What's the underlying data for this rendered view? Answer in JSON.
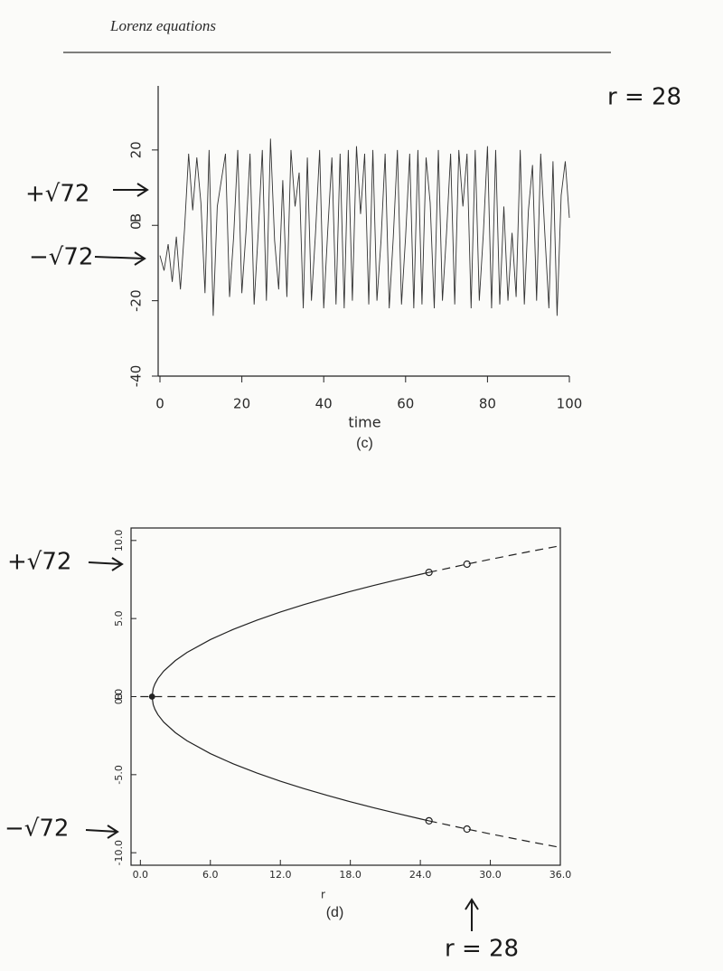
{
  "header": {
    "title": "Lorenz equations"
  },
  "chart_data": [
    {
      "type": "line",
      "caption": "(c)",
      "x_label": "time",
      "y_label": "B",
      "xlim": [
        0,
        100
      ],
      "ylim": [
        -40,
        37
      ],
      "xticks": [
        0,
        20,
        40,
        60,
        80,
        100
      ],
      "yticks": [
        -40,
        -20,
        0,
        20
      ],
      "annotations": [
        "r = 28",
        "+√72",
        "−√72"
      ],
      "series": [
        {
          "color": "#333333",
          "style": "solid",
          "x": [
            0,
            1,
            2,
            3,
            4,
            5,
            6,
            7,
            8,
            9,
            10,
            11,
            12,
            13,
            14,
            15,
            16,
            17,
            18,
            19,
            20,
            21,
            22,
            23,
            24,
            25,
            26,
            27,
            28,
            29,
            30,
            31,
            32,
            33,
            34,
            35,
            36,
            37,
            38,
            39,
            40,
            41,
            42,
            43,
            44,
            45,
            46,
            47,
            48,
            49,
            50,
            51,
            52,
            53,
            54,
            55,
            56,
            57,
            58,
            59,
            60,
            61,
            62,
            63,
            64,
            65,
            66,
            67,
            68,
            69,
            70,
            71,
            72,
            73,
            74,
            75,
            76,
            77,
            78,
            79,
            80,
            81,
            82,
            83,
            84,
            85,
            86,
            87,
            88,
            89,
            90,
            91,
            92,
            93,
            94,
            95,
            96,
            97,
            98,
            99,
            100
          ],
          "values": [
            -8,
            -12,
            -5,
            -15,
            -3,
            -17,
            -1,
            19,
            4,
            18,
            6,
            -18,
            20,
            -24,
            5,
            12,
            19,
            -19,
            -3,
            20,
            -18,
            -2,
            19,
            -21,
            -2,
            20,
            -20,
            23,
            -4,
            -17,
            12,
            -19,
            20,
            5,
            14,
            -22,
            18,
            -20,
            -2,
            20,
            -22,
            -1,
            18,
            -21,
            19,
            -22,
            20,
            -20,
            21,
            3,
            19,
            -21,
            20,
            -20,
            -4,
            19,
            -22,
            -3,
            20,
            -21,
            -3,
            19,
            -22,
            20,
            -21,
            18,
            6,
            -22,
            20,
            -20,
            -2,
            19,
            -21,
            20,
            5,
            19,
            -22,
            20,
            -20,
            -2,
            21,
            -22,
            20,
            -21,
            5,
            -20,
            -2,
            -19,
            20,
            -21,
            4,
            16,
            -20,
            19,
            -2,
            -22,
            17,
            -24,
            8,
            17,
            2
          ]
        }
      ]
    },
    {
      "type": "line",
      "caption": "(d)",
      "x_label": "r",
      "y_label": "B",
      "xlim": [
        -0.8,
        36
      ],
      "ylim": [
        -10.8,
        10.8
      ],
      "xticks": [
        {
          "value": 0,
          "label": "0.0"
        },
        {
          "value": 6,
          "label": "6.0"
        },
        {
          "value": 12,
          "label": "12.0"
        },
        {
          "value": 18,
          "label": "18.0"
        },
        {
          "value": 24,
          "label": "24.0"
        },
        {
          "value": 30,
          "label": "30.0"
        },
        {
          "value": 36,
          "label": "36.0"
        }
      ],
      "yticks": [
        {
          "value": -10,
          "label": "-10.0"
        },
        {
          "value": -5,
          "label": "-5.0"
        },
        {
          "value": 0,
          "label": "0.0"
        },
        {
          "value": 5,
          "label": "5.0"
        },
        {
          "value": 10,
          "label": "10.0"
        }
      ],
      "annotations": [
        "+√72",
        "−√72",
        "r = 28"
      ],
      "series": [
        {
          "color": "#222222",
          "style": "solid",
          "x": [
            1,
            1.1,
            1.25,
            1.5,
            2,
            3,
            4,
            6,
            8,
            10,
            12,
            14,
            16,
            18,
            20,
            22,
            24,
            24.74
          ],
          "values": [
            0,
            0.516,
            0.816,
            1.155,
            1.633,
            2.309,
            2.828,
            3.651,
            4.32,
            4.899,
            5.416,
            5.888,
            6.325,
            6.733,
            7.118,
            7.483,
            7.832,
            7.957
          ]
        },
        {
          "color": "#222222",
          "style": "solid",
          "x": [
            1,
            1.1,
            1.25,
            1.5,
            2,
            3,
            4,
            6,
            8,
            10,
            12,
            14,
            16,
            18,
            20,
            22,
            24,
            24.74
          ],
          "values": [
            0,
            -0.516,
            -0.816,
            -1.155,
            -1.633,
            -2.309,
            -2.828,
            -3.651,
            -4.32,
            -4.899,
            -5.416,
            -5.888,
            -6.325,
            -6.733,
            -7.118,
            -7.483,
            -7.832,
            -7.957
          ]
        },
        {
          "color": "#222222",
          "style": "dashed",
          "x": [
            24.74,
            28,
            30,
            32,
            34,
            36
          ],
          "values": [
            7.957,
            8.485,
            8.794,
            9.092,
            9.381,
            9.661
          ]
        },
        {
          "color": "#222222",
          "style": "dashed",
          "x": [
            24.74,
            28,
            30,
            32,
            34,
            36
          ],
          "values": [
            -7.957,
            -8.485,
            -8.794,
            -9.092,
            -9.381,
            -9.661
          ]
        },
        {
          "color": "#222222",
          "style": "dashed",
          "x": [
            0,
            36
          ],
          "values": [
            0,
            0
          ]
        },
        {
          "color": "#222222",
          "style": "open-circle",
          "x": [
            24.74,
            24.74,
            28,
            28
          ],
          "values": [
            7.957,
            -7.957,
            8.485,
            -8.485
          ]
        },
        {
          "color": "#222222",
          "style": "filled-circle",
          "x": [
            1
          ],
          "values": [
            0
          ]
        }
      ]
    }
  ]
}
